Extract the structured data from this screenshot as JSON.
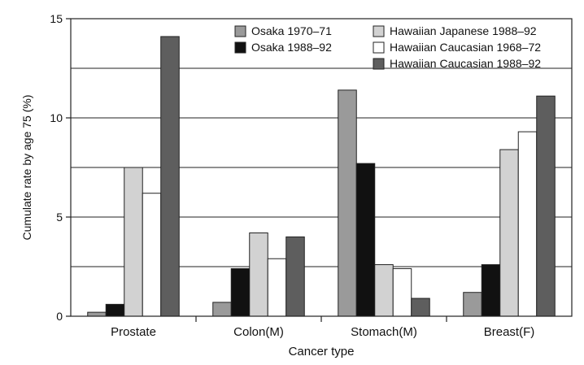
{
  "chart_data": {
    "type": "bar",
    "xlabel": "Cancer type",
    "ylabel": "Cumulate rate by age 75 (%)",
    "ylim": [
      0,
      15
    ],
    "yticks": [
      0,
      5,
      10,
      15
    ],
    "ytick_labels": [
      "0",
      "5",
      "10",
      "15"
    ],
    "grid": "horizontal lines at 2.5 intervals",
    "legend_position": "top-right",
    "categories": [
      "Prostate",
      "Colon(M)",
      "Stomach(M)",
      "Breast(F)"
    ],
    "series": [
      {
        "name": "Osaka 1970–71",
        "color": "#9a9a9a",
        "values": [
          0.2,
          0.7,
          11.4,
          1.2
        ]
      },
      {
        "name": "Osaka 1988–92",
        "color": "#111111",
        "values": [
          0.6,
          2.4,
          7.7,
          2.6
        ]
      },
      {
        "name": "Hawaiian Japanese 1988–92",
        "color": "#d2d2d2",
        "values": [
          7.5,
          4.2,
          2.6,
          8.4
        ]
      },
      {
        "name": "Hawaiian Caucasian 1968–72",
        "color": "#ffffff",
        "values": [
          6.2,
          2.9,
          2.4,
          9.3
        ]
      },
      {
        "name": "Hawaiian Caucasian 1988–92",
        "color": "#5e5e5e",
        "values": [
          14.1,
          4.0,
          0.9,
          11.1
        ]
      }
    ]
  }
}
